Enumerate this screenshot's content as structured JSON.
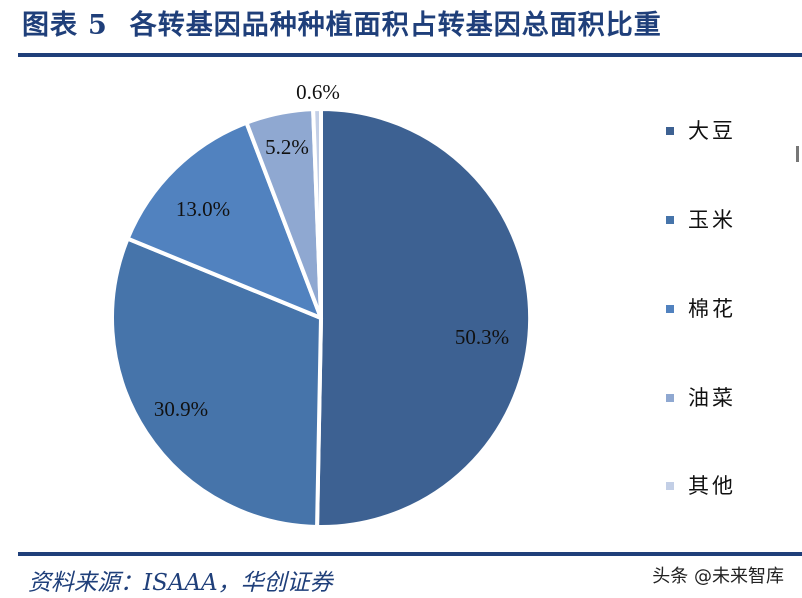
{
  "header": {
    "figure_label": "图表",
    "figure_number": "5",
    "title": "各转基因品种种植面积占转基因总面积比重"
  },
  "chart_data": {
    "type": "pie",
    "title": "各转基因品种种植面积占转基因总面积比重",
    "categories": [
      "大豆",
      "玉米",
      "棉花",
      "油菜",
      "其他"
    ],
    "values": [
      50.3,
      30.9,
      13.0,
      5.2,
      0.6
    ],
    "value_labels": [
      "50.3%",
      "30.9%",
      "13.0%",
      "5.2%",
      "0.6%"
    ],
    "colors": [
      "#3d6192",
      "#4674aa",
      "#5182bf",
      "#8fa8d1",
      "#c3cfe6"
    ],
    "start_angle_deg": 0,
    "direction": "clockwise",
    "legend_position": "right",
    "unit": "%"
  },
  "legend": {
    "items": [
      {
        "label": "大豆",
        "color": "#3d6192"
      },
      {
        "label": "玉米",
        "color": "#4674aa"
      },
      {
        "label": "棉花",
        "color": "#5182bf"
      },
      {
        "label": "油菜",
        "color": "#8fa8d1"
      },
      {
        "label": "其他",
        "color": "#c3cfe6"
      }
    ]
  },
  "footer": {
    "source": "资料来源：ISAAA，华创证券",
    "watermark": "头条 @未来智库"
  },
  "colors": {
    "brand": "#1f3f7a"
  }
}
